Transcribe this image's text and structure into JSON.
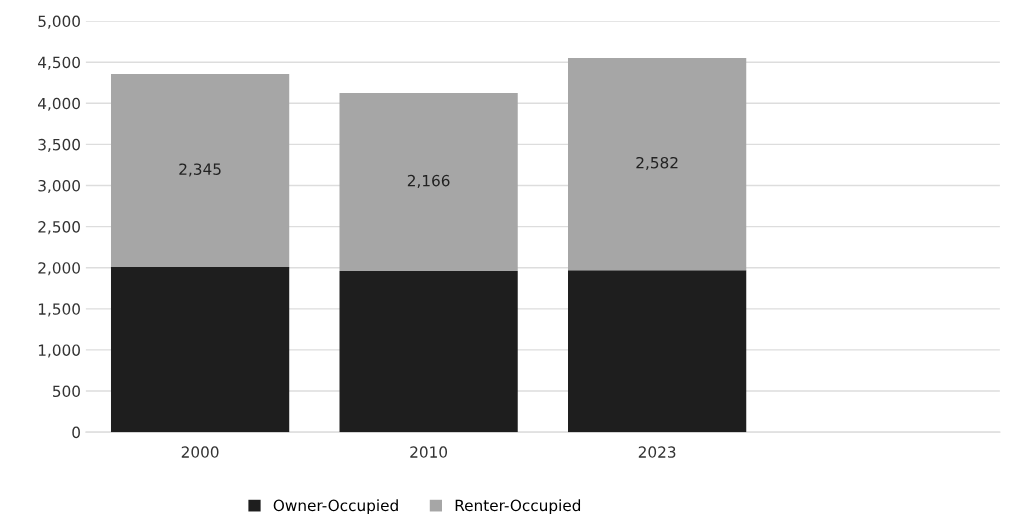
{
  "chart_data": {
    "type": "bar",
    "stacked": true,
    "categories": [
      "2000",
      "2010",
      "2023",
      null
    ],
    "series": [
      {
        "name": "Owner-Occupied",
        "color": "#1e1e1e",
        "values": [
          2010,
          1960,
          1970,
          null
        ]
      },
      {
        "name": "Renter-Occupied",
        "color": "#a6a6a6",
        "values": [
          2345,
          2166,
          2582,
          null
        ],
        "value_labels": [
          "2,345",
          "2,166",
          "2,582",
          null
        ]
      }
    ],
    "ylim": [
      0,
      5000
    ],
    "yticks": [
      {
        "value": 0,
        "label": "0"
      },
      {
        "value": 500,
        "label": "500"
      },
      {
        "value": 1000,
        "label": "1,000"
      },
      {
        "value": 1500,
        "label": "1,500"
      },
      {
        "value": 2000,
        "label": "2,000"
      },
      {
        "value": 2500,
        "label": "2,500"
      },
      {
        "value": 3000,
        "label": "3,000"
      },
      {
        "value": 3500,
        "label": "3,500"
      },
      {
        "value": 4000,
        "label": "4,000"
      },
      {
        "value": 4500,
        "label": "4,500"
      },
      {
        "value": 5000,
        "label": "5,000"
      }
    ],
    "grid": "y",
    "legend": "bottom"
  }
}
